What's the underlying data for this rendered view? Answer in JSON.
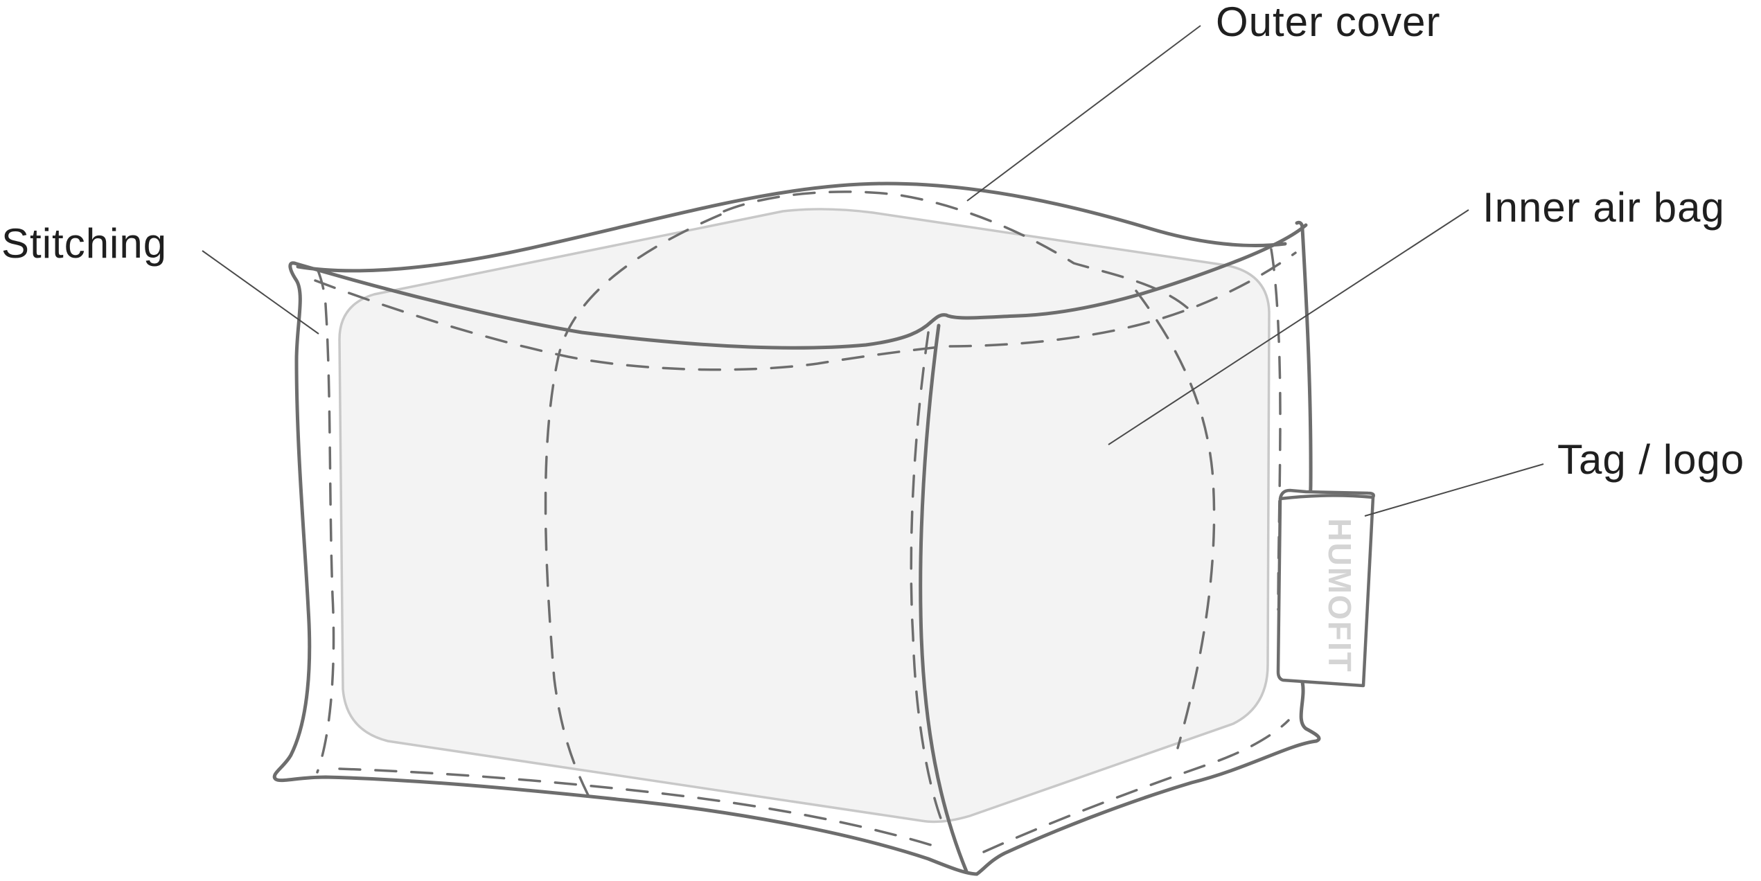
{
  "labels": {
    "outer_cover": "Outer cover",
    "inner_air_bag": "Inner air bag",
    "stitching": "Stitching",
    "tag_logo": "Tag / logo"
  },
  "tag_text": "HUMOFIT",
  "colors": {
    "outline": "#6d6d6d",
    "air_bag_fill": "#f3f3f3",
    "air_bag_stroke": "#c8c8c8",
    "label_text": "#1f1f1f",
    "tag_text": "#d4d4d4"
  }
}
